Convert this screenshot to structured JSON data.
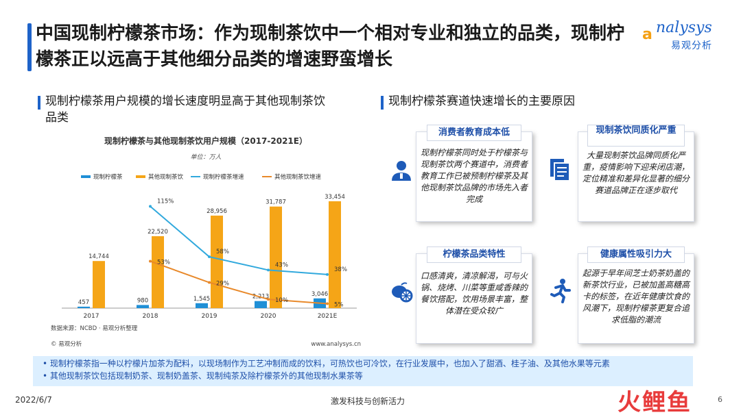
{
  "title": "中国现制柠檬茶市场：作为现制茶饮中一个相对专业和独立的品类，现制柠檬茶正以远高于其他细分品类的增速野蛮增长",
  "logo": {
    "word": "nalysys",
    "cn": "易观分析"
  },
  "left_section": {
    "heading": "现制柠檬茶用户规模的增长速度明显高于其他现制茶饮品类"
  },
  "right_section": {
    "heading": "现制柠檬茶赛道快速增长的主要原因"
  },
  "cards": [
    {
      "title": "消费者教育成本低",
      "text": "现制柠檬茶同时处于柠檬茶与现制茶饮两个赛道中，消费者教育工作已被预制柠檬茶及其他现制茶饮品牌的市场先入者完成",
      "icon": "user-icon"
    },
    {
      "title": "现制茶饮同质化严重",
      "text": "大量现制茶饮品牌同质化严重，疫情影响下迎来闭店潮，定位精准和差异化显著的细分赛道品牌正在逐步取代",
      "icon": "documents-icon"
    },
    {
      "title": "柠檬茶品类特性",
      "text": "口感清爽，清凉解渴，可与火锅、烧烤、川菜等重咸香辣的餐饮搭配，饮用场景丰富，整体潜在受众较广",
      "icon": "lemon-icon"
    },
    {
      "title": "健康属性吸引力大",
      "text": "起源于早年间芝士奶茶奶盖的新茶饮行业，已被加盖高糖高卡的标签，在近年健康饮食的风潮下，现制柠檬茶更复合追求低脂的潮流",
      "icon": "runner-icon"
    }
  ],
  "notes": [
    "现制柠檬茶指一种以柠檬片加茶为配料，以现场制作为工艺冲制而成的饮料，可热饮也可冷饮，在行业发展中，也加入了甜酒、桂子油、及其他水果等元素",
    "其他现制茶饮包括现制奶茶、现制奶盖茶、现制纯茶及除柠檬茶外的其他现制水果茶等"
  ],
  "footer": {
    "date": "2022/6/7",
    "center": "激发科技与创新活力",
    "page": "6"
  },
  "watermark": "火鲤鱼",
  "chart_data": {
    "type": "bar",
    "title": "现制柠檬茶与其他现制茶饮用户规模（2017-2021E）",
    "subtitle": "单位：万人",
    "categories": [
      "2017",
      "2018",
      "2019",
      "2020",
      "2021E"
    ],
    "bar_series": [
      {
        "name": "现制柠檬茶",
        "color": "#1f8fd6",
        "values": [
          457,
          980,
          1545,
          2213,
          3046
        ],
        "labels": [
          "457",
          "980",
          "1,545",
          "2,213",
          "3,046"
        ]
      },
      {
        "name": "其他现制茶饮",
        "color": "#f5a517",
        "values": [
          14744,
          22520,
          28956,
          31787,
          33454
        ],
        "labels": [
          "14,744",
          "22,520",
          "28,956",
          "31,787",
          "33,454"
        ]
      }
    ],
    "line_series": [
      {
        "name": "现制柠檬茶增速",
        "color": "#31a9dd",
        "values": [
          null,
          115,
          58,
          43,
          38
        ],
        "labels": [
          "",
          "115%",
          "58%",
          "43%",
          "38%"
        ]
      },
      {
        "name": "其他现制茶饮增速",
        "color": "#e8892a",
        "values": [
          null,
          53,
          29,
          10,
          5
        ],
        "labels": [
          "",
          "53%",
          "29%",
          "10%",
          "5%"
        ]
      }
    ],
    "ylim_bar": [
      0,
      36000
    ],
    "ylim_line": [
      0,
      130
    ],
    "source": "数据来源：NCBD · 易观分析整理",
    "copyright": "© 易观分析",
    "url": "www.analysys.cn",
    "legend_position": "top"
  }
}
